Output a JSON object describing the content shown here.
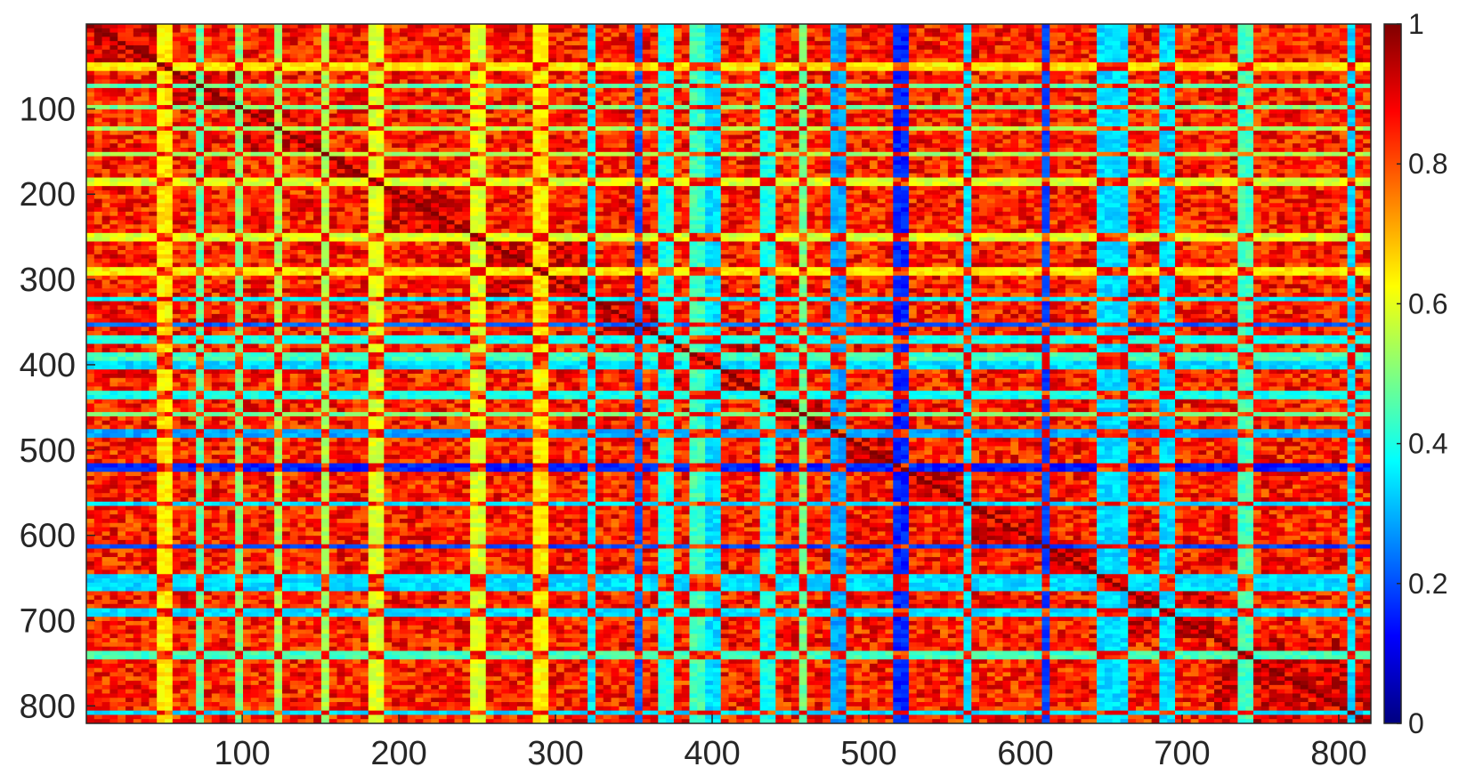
{
  "chart_data": {
    "type": "heatmap",
    "title": "",
    "xlabel": "",
    "ylabel": "",
    "n_rows": 820,
    "n_cols": 820,
    "xlim": [
      0.5,
      820.5
    ],
    "ylim": [
      0.5,
      820.5
    ],
    "y_direction": "reverse",
    "x_ticks": [
      100,
      200,
      300,
      400,
      500,
      600,
      700,
      800
    ],
    "x_tick_labels": [
      "100",
      "200",
      "300",
      "400",
      "500",
      "600",
      "700",
      "800"
    ],
    "y_ticks": [
      100,
      200,
      300,
      400,
      500,
      600,
      700,
      800
    ],
    "y_tick_labels": [
      "100",
      "200",
      "300",
      "400",
      "500",
      "600",
      "700",
      "800"
    ],
    "colormap": "jet",
    "clim": [
      0,
      1
    ],
    "colorbar": {
      "location": "right",
      "ticks": [
        0,
        0.2,
        0.4,
        0.6,
        0.8,
        1
      ],
      "tick_labels": [
        "0",
        "0.2",
        "0.4",
        "0.6",
        "0.8",
        "1"
      ]
    },
    "diagonal_value": 1,
    "background_value_range": [
      0.75,
      0.95
    ],
    "low_similarity_lines": [
      {
        "index": 50,
        "value": 0.6
      },
      {
        "index": 73,
        "value": 0.42
      },
      {
        "index": 97,
        "value": 0.45
      },
      {
        "index": 122,
        "value": 0.5
      },
      {
        "index": 152,
        "value": 0.5
      },
      {
        "index": 185,
        "value": 0.55
      },
      {
        "index": 250,
        "value": 0.55
      },
      {
        "index": 290,
        "value": 0.6
      },
      {
        "index": 322,
        "value": 0.32
      },
      {
        "index": 353,
        "value": 0.18
      },
      {
        "index": 370,
        "value": 0.35
      },
      {
        "index": 390,
        "value": 0.4
      },
      {
        "index": 400,
        "value": 0.3
      },
      {
        "index": 435,
        "value": 0.35
      },
      {
        "index": 458,
        "value": 0.45
      },
      {
        "index": 480,
        "value": 0.25
      },
      {
        "index": 520,
        "value": 0.12
      },
      {
        "index": 563,
        "value": 0.3
      },
      {
        "index": 612,
        "value": 0.15
      },
      {
        "index": 650,
        "value": 0.3
      },
      {
        "index": 660,
        "value": 0.3
      },
      {
        "index": 690,
        "value": 0.3
      },
      {
        "index": 740,
        "value": 0.4
      },
      {
        "index": 808,
        "value": 0.3
      }
    ],
    "diagonal_blocks": [
      {
        "start": 1,
        "end": 50
      },
      {
        "start": 50,
        "end": 97
      },
      {
        "start": 97,
        "end": 152
      },
      {
        "start": 152,
        "end": 185
      },
      {
        "start": 185,
        "end": 250
      },
      {
        "start": 250,
        "end": 322
      },
      {
        "start": 322,
        "end": 370
      },
      {
        "start": 370,
        "end": 435
      },
      {
        "start": 435,
        "end": 480
      },
      {
        "start": 480,
        "end": 520
      },
      {
        "start": 520,
        "end": 563
      },
      {
        "start": 563,
        "end": 612
      },
      {
        "start": 612,
        "end": 660
      },
      {
        "start": 660,
        "end": 720
      },
      {
        "start": 720,
        "end": 820
      }
    ]
  }
}
